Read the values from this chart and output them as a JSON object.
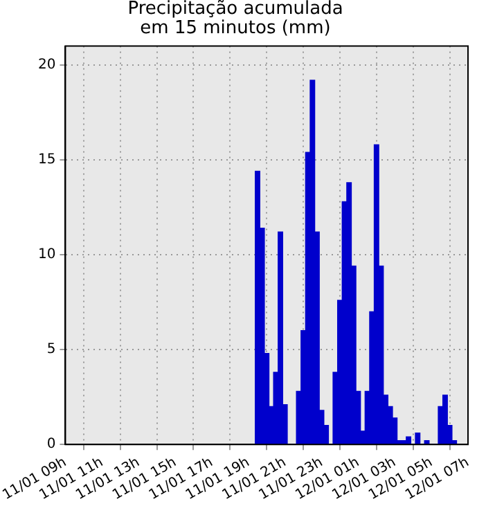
{
  "chart_data": {
    "type": "bar",
    "title": "Precipitação acumulada\nem 15 minutos (mm)",
    "x": [
      "--01-11T19:30",
      "--01-11T19:45",
      "--01-11T20:00",
      "--01-11T20:15",
      "--01-11T20:30",
      "--01-11T20:45",
      "--01-11T21:00",
      "--01-11T21:15",
      "--01-11T21:30",
      "--01-11T21:45",
      "--01-11T22:00",
      "--01-11T22:15",
      "--01-11T22:30",
      "--01-11T22:45",
      "--01-11T23:00",
      "--01-11T23:15",
      "--01-11T23:30",
      "--01-11T23:45",
      "--01-12T00:00",
      "--01-12T00:15",
      "--01-12T00:30",
      "--01-12T00:45",
      "--01-12T01:00",
      "--01-12T01:15",
      "--01-12T01:30",
      "--01-12T01:45",
      "--01-12T02:00",
      "--01-12T02:15",
      "--01-12T02:30",
      "--01-12T02:45",
      "--01-12T03:00",
      "--01-12T03:15",
      "--01-12T03:30",
      "--01-12T03:45",
      "--01-12T04:00",
      "--01-12T04:15",
      "--01-12T04:30",
      "--01-12T04:45",
      "--01-12T05:00",
      "--01-12T05:15",
      "--01-12T05:30",
      "--01-12T05:45",
      "--01-12T06:00",
      "--01-12T06:15"
    ],
    "values": [
      14.4,
      11.4,
      4.8,
      2.0,
      3.8,
      11.2,
      2.1,
      0,
      0,
      2.8,
      6.0,
      15.4,
      19.2,
      11.2,
      1.8,
      1.0,
      0,
      3.8,
      7.6,
      12.8,
      13.8,
      9.4,
      2.8,
      0.7,
      2.8,
      7.0,
      15.8,
      9.4,
      2.6,
      2.0,
      1.4,
      0.2,
      0.2,
      0.4,
      0,
      0.6,
      0,
      0.2,
      0,
      0,
      2.0,
      2.6,
      1.0,
      0.2
    ],
    "color": "#0000cc",
    "xlim": [
      "--01-11T09:00",
      "--01-12T07:00"
    ],
    "xticks": [
      {
        "value": "--01-11T09:00",
        "label": "11/01 09h"
      },
      {
        "value": "--01-11T11:00",
        "label": "11/01 11h"
      },
      {
        "value": "--01-11T13:00",
        "label": "11/01 13h"
      },
      {
        "value": "--01-11T15:00",
        "label": "11/01 15h"
      },
      {
        "value": "--01-11T17:00",
        "label": "11/01 17h"
      },
      {
        "value": "--01-11T19:00",
        "label": "11/01 19h"
      },
      {
        "value": "--01-11T21:00",
        "label": "11/01 21h"
      },
      {
        "value": "--01-11T23:00",
        "label": "11/01 23h"
      },
      {
        "value": "--01-12T01:00",
        "label": "12/01 01h"
      },
      {
        "value": "--01-12T03:00",
        "label": "12/01 03h"
      },
      {
        "value": "--01-12T05:00",
        "label": "12/01 05h"
      },
      {
        "value": "--01-12T07:00",
        "label": "12/01 07h"
      }
    ],
    "ylim": [
      0,
      21
    ],
    "yticks": [
      0,
      5,
      10,
      15,
      20
    ],
    "grid": true
  }
}
